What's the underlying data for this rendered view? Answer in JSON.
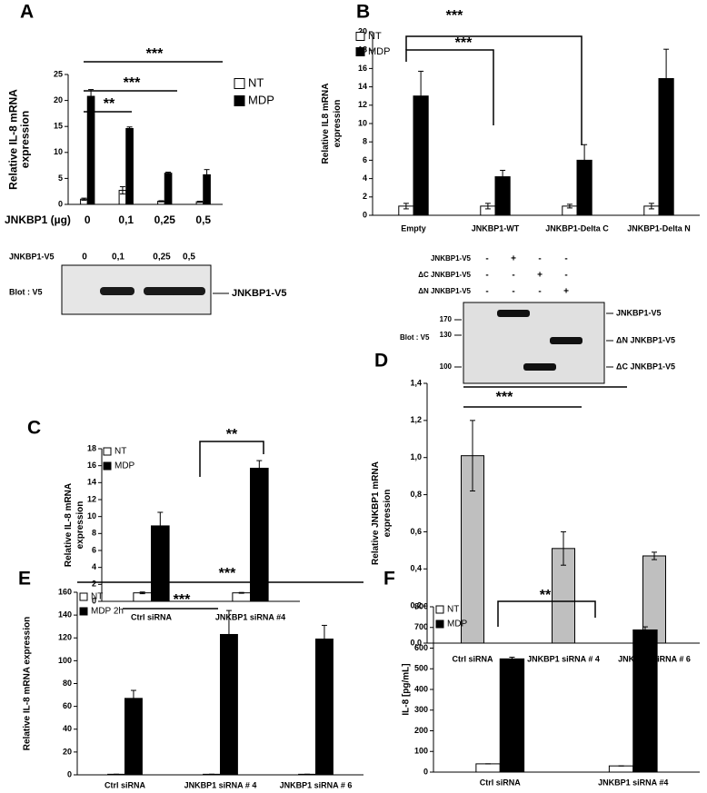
{
  "chart_data": [
    {
      "type": "bar",
      "panel": "A",
      "y_label": [
        "Relative IL-8 mRNA",
        "expression"
      ],
      "x_label": "JNKBP1 (µg)",
      "categories": [
        "0",
        "0,1",
        "0,25",
        "0,5"
      ],
      "series": [
        {
          "name": "NT",
          "color": "#ffffff",
          "values": [
            1,
            2.7,
            0.6,
            0.5
          ],
          "errors": [
            0.2,
            0.7,
            0.1,
            0.1
          ]
        },
        {
          "name": "MDP",
          "color": "#000000",
          "values": [
            20.8,
            14.6,
            6,
            5.7
          ],
          "errors": [
            1.3,
            0.3,
            0.2,
            1
          ]
        }
      ],
      "ylim": [
        0,
        25
      ],
      "yticks": [
        0,
        5,
        10,
        15,
        20,
        25
      ],
      "annotations": [
        "**",
        "***",
        "***"
      ],
      "blot": {
        "lane_header": "JNKBP1-V5",
        "lanes": [
          "0",
          "0,1",
          "0,25",
          "0,5"
        ],
        "label": "Blot : V5",
        "band_label": "JNKBP1-V5"
      }
    },
    {
      "type": "bar",
      "panel": "B",
      "y_label": [
        "Relative IL8 mRNA",
        "expression"
      ],
      "categories": [
        "Empty",
        "JNKBP1-WT",
        "JNKBP1-Delta C",
        "JNKBP1-Delta N"
      ],
      "series": [
        {
          "name": "NT",
          "color": "#ffffff",
          "values": [
            1,
            1,
            1,
            1
          ],
          "errors": [
            0.3,
            0.3,
            0.2,
            0.3
          ]
        },
        {
          "name": "MDP",
          "color": "#000000",
          "values": [
            13,
            4.2,
            6,
            14.9
          ],
          "errors": [
            2.7,
            0.7,
            1.7,
            3.2
          ]
        }
      ],
      "ylim": [
        0,
        20
      ],
      "yticks": [
        0,
        2,
        4,
        6,
        8,
        10,
        12,
        14,
        16,
        18,
        20
      ],
      "annotations": [
        "***",
        "***"
      ],
      "blot": {
        "rows": [
          {
            "name": "JNKBP1-V5",
            "signs": [
              "-",
              "+",
              "-",
              "-"
            ]
          },
          {
            "name": "ΔC JNKBP1-V5",
            "signs": [
              "-",
              "-",
              "+",
              "-"
            ]
          },
          {
            "name": "ΔN JNKBP1-V5",
            "signs": [
              "-",
              "-",
              "-",
              "+"
            ]
          }
        ],
        "label": "Blot : V5",
        "markers": [
          170,
          130,
          100
        ],
        "band_labels": [
          "JNKBP1-V5",
          "ΔN JNKBP1-V5",
          "ΔC JNKBP1-V5"
        ]
      }
    },
    {
      "type": "bar",
      "panel": "C",
      "y_label": [
        "Relative IL-8 mRNA",
        "expression"
      ],
      "categories": [
        "Ctrl siRNA",
        "JNKBP1 siRNA #4"
      ],
      "series": [
        {
          "name": "NT",
          "color": "#ffffff",
          "values": [
            1,
            1
          ],
          "errors": [
            0.1,
            0.05
          ]
        },
        {
          "name": "MDP",
          "color": "#000000",
          "values": [
            8.9,
            15.7
          ],
          "errors": [
            1.6,
            0.9
          ]
        }
      ],
      "ylim": [
        0,
        18
      ],
      "yticks": [
        0,
        2,
        4,
        6,
        8,
        10,
        12,
        14,
        16,
        18
      ],
      "annotations": [
        "**"
      ]
    },
    {
      "type": "bar",
      "panel": "D",
      "y_label": [
        "Relative JNKBP1 mRNA",
        "expression"
      ],
      "categories": [
        "Ctrl siRNA",
        "JNKBP1 siRNA # 4",
        "JNKBP1 siRNA # 6"
      ],
      "series": [
        {
          "color": "#bfbfbf",
          "values": [
            1.01,
            0.51,
            0.47
          ],
          "errors": [
            0.19,
            0.09,
            0.02
          ]
        }
      ],
      "ylim": [
        0,
        1.4
      ],
      "yticks": [
        {
          "value": 0,
          "label": "0,0"
        },
        {
          "value": 0.2,
          "label": "0,2"
        },
        {
          "value": 0.4,
          "label": "0,4"
        },
        {
          "value": 0.6,
          "label": "0,6"
        },
        {
          "value": 0.8,
          "label": "0,8"
        },
        {
          "value": 1,
          "label": "1,0"
        },
        {
          "value": 1.2,
          "label": "1,2"
        },
        {
          "value": 1.4,
          "label": "1,4"
        }
      ],
      "annotations": [
        "***",
        "***"
      ]
    },
    {
      "type": "bar",
      "panel": "E",
      "y_label": [
        "Relative IL-8 mRNA expression"
      ],
      "categories": [
        "Ctrl siRNA",
        "JNKBP1 siRNA # 4",
        "JNKBP1 siRNA # 6"
      ],
      "series": [
        {
          "name": "NT",
          "color": "#ffffff",
          "values": [
            0.5,
            0.5,
            0.5
          ],
          "errors": [
            0,
            0,
            0
          ]
        },
        {
          "name": "MDP 2h",
          "color": "#000000",
          "values": [
            67,
            123,
            119
          ],
          "errors": [
            7,
            21,
            12
          ]
        }
      ],
      "ylim": [
        0,
        160
      ],
      "yticks": [
        0,
        20,
        40,
        60,
        80,
        100,
        120,
        140,
        160
      ],
      "annotations": [
        "***",
        "***"
      ]
    },
    {
      "type": "bar",
      "panel": "F",
      "y_label": [
        "IL-8 [pg/mL]"
      ],
      "categories": [
        "Ctrl siRNA",
        "JNKBP1 siRNA #4"
      ],
      "series": [
        {
          "name": "NT",
          "color": "#ffffff",
          "values": [
            40,
            30
          ],
          "errors": [
            0,
            0
          ]
        },
        {
          "name": "MDP",
          "color": "#000000",
          "values": [
            548,
            688
          ],
          "errors": [
            8,
            15
          ]
        }
      ],
      "ylim": [
        0,
        800
      ],
      "yticks": [
        0,
        100,
        200,
        300,
        400,
        500,
        600,
        700,
        800
      ],
      "annotations": [
        "**"
      ]
    }
  ]
}
